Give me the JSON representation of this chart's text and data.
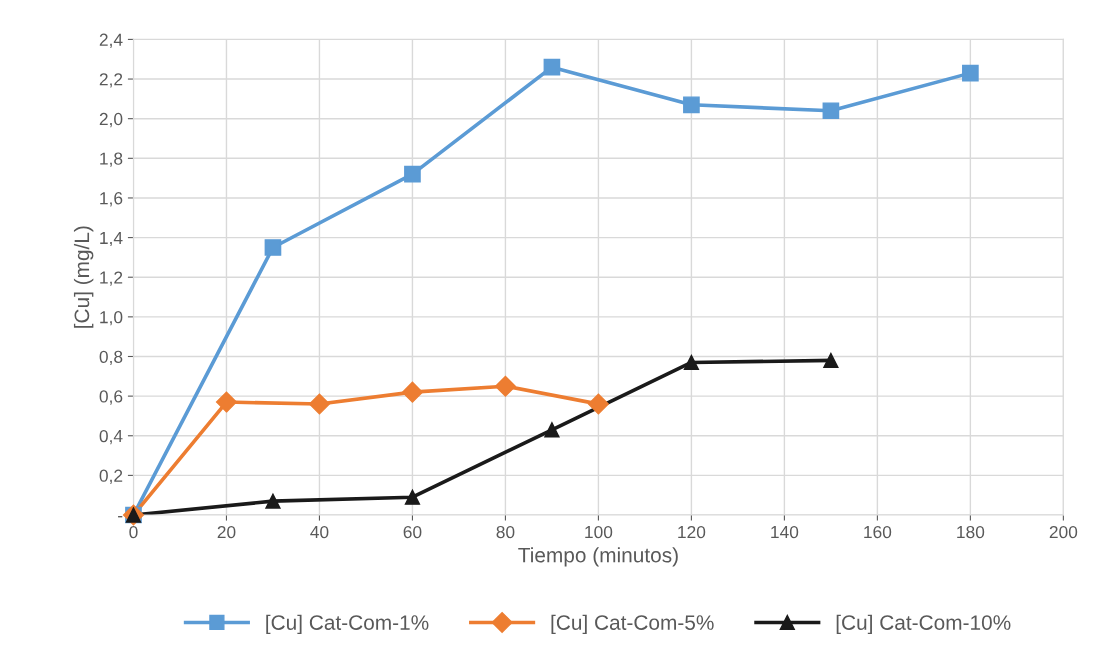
{
  "chart_data": {
    "type": "line",
    "xlabel": "Tiempo (minutos)",
    "ylabel": "[Cu] (mg/L)",
    "xlim": [
      0,
      200
    ],
    "xticks": [
      0,
      20,
      40,
      60,
      80,
      100,
      120,
      140,
      160,
      180,
      200
    ],
    "ylim": [
      0,
      2.4
    ],
    "yticks": [
      {
        "value": 0,
        "label": "-"
      },
      {
        "value": 0.2,
        "label": "0,2"
      },
      {
        "value": 0.4,
        "label": "0,4"
      },
      {
        "value": 0.6,
        "label": "0,6"
      },
      {
        "value": 0.8,
        "label": "0,8"
      },
      {
        "value": 1.0,
        "label": "1,0"
      },
      {
        "value": 1.2,
        "label": "1,2"
      },
      {
        "value": 1.4,
        "label": "1,4"
      },
      {
        "value": 1.6,
        "label": "1,6"
      },
      {
        "value": 1.8,
        "label": "1,8"
      },
      {
        "value": 2.0,
        "label": "2,0"
      },
      {
        "value": 2.2,
        "label": "2,2"
      },
      {
        "value": 2.4,
        "label": "2,4"
      }
    ],
    "grid": true,
    "legend": "bottom",
    "line_style": "solid",
    "series": [
      {
        "name": "[Cu] Cat-Com-1%",
        "color": "#5b9bd5",
        "marker": "square",
        "x": [
          0,
          30,
          60,
          90,
          120,
          150,
          180
        ],
        "values": [
          0,
          1.35,
          1.72,
          2.26,
          2.07,
          2.04,
          2.23
        ]
      },
      {
        "name": "[Cu] Cat-Com-5%",
        "color": "#ed7d31",
        "marker": "diamond",
        "x": [
          0,
          20,
          40,
          60,
          80,
          100
        ],
        "values": [
          0,
          0.57,
          0.56,
          0.62,
          0.65,
          0.56
        ]
      },
      {
        "name": "[Cu] Cat-Com-10%",
        "color": "#1a1a1a",
        "marker": "triangle",
        "x": [
          0,
          30,
          60,
          90,
          120,
          150
        ],
        "values": [
          0,
          0.07,
          0.09,
          0.43,
          0.77,
          0.78
        ]
      }
    ]
  }
}
